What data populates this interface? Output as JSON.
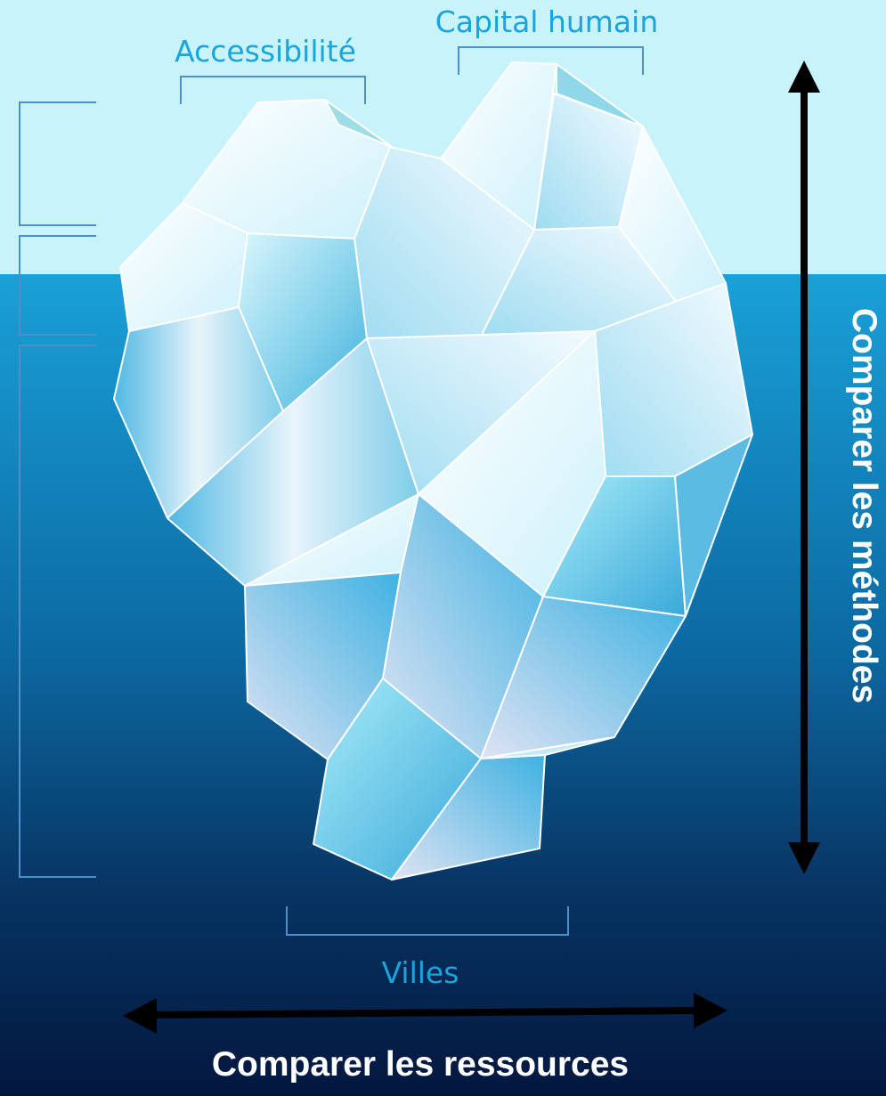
{
  "labels": {
    "accessibility": "Accessibilité",
    "human_capital": "Capital humain",
    "cities": "Villes"
  },
  "axes": {
    "vertical": "Comparer les méthodes",
    "horizontal": "Comparer les ressources"
  },
  "colors": {
    "sky": "#c8f3fb",
    "sea_top": "#1aa0d8",
    "sea_bottom": "#03173e",
    "label": "#1aa4de",
    "bracket": "#4f8fc8",
    "arrow": "#000000",
    "axis_text": "#ffffff"
  }
}
